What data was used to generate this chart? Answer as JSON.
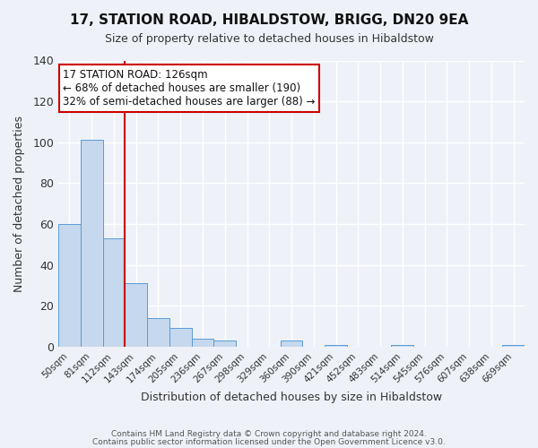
{
  "title": "17, STATION ROAD, HIBALDSTOW, BRIGG, DN20 9EA",
  "subtitle": "Size of property relative to detached houses in Hibaldstow",
  "xlabel": "Distribution of detached houses by size in Hibaldstow",
  "ylabel": "Number of detached properties",
  "bin_labels": [
    "50sqm",
    "81sqm",
    "112sqm",
    "143sqm",
    "174sqm",
    "205sqm",
    "236sqm",
    "267sqm",
    "298sqm",
    "329sqm",
    "360sqm",
    "390sqm",
    "421sqm",
    "452sqm",
    "483sqm",
    "514sqm",
    "545sqm",
    "576sqm",
    "607sqm",
    "638sqm",
    "669sqm"
  ],
  "bar_values": [
    60,
    101,
    53,
    31,
    14,
    9,
    4,
    3,
    0,
    0,
    3,
    0,
    1,
    0,
    0,
    1,
    0,
    0,
    0,
    0,
    1
  ],
  "bar_color": "#c5d8ed",
  "bar_edge_color": "#5b9bd5",
  "ylim": [
    0,
    140
  ],
  "yticks": [
    0,
    20,
    40,
    60,
    80,
    100,
    120,
    140
  ],
  "vline_color": "#cc0000",
  "annotation_title": "17 STATION ROAD: 126sqm",
  "annotation_line1": "← 68% of detached houses are smaller (190)",
  "annotation_line2": "32% of semi-detached houses are larger (88) →",
  "annotation_box_color": "#cc0000",
  "footer1": "Contains HM Land Registry data © Crown copyright and database right 2024.",
  "footer2": "Contains public sector information licensed under the Open Government Licence v3.0.",
  "background_color": "#eef2f8"
}
